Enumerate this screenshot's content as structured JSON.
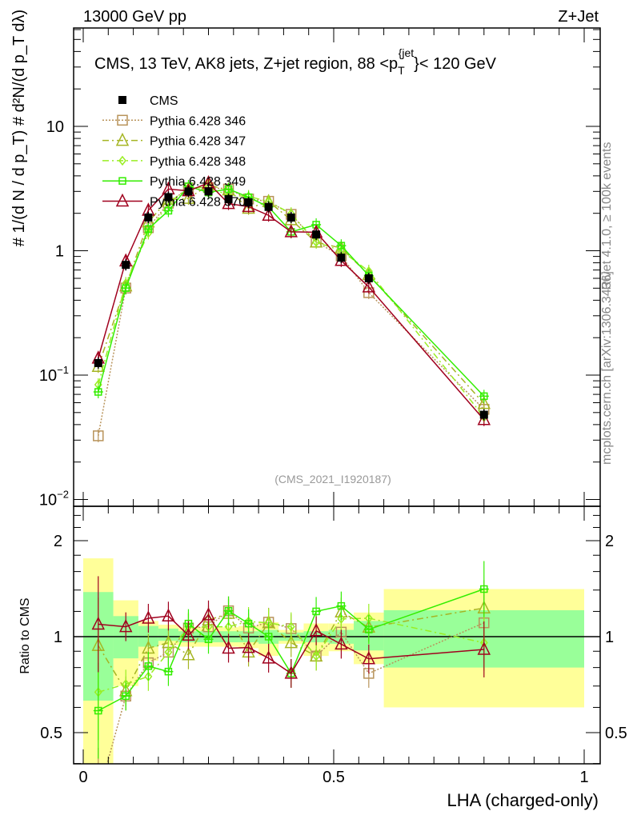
{
  "header": {
    "left": "13000 GeV pp",
    "right": "Z+Jet"
  },
  "side_labels": {
    "rivet": "Rivet 4.1.0, ≥ 100k events",
    "mcplots": "mcplots.cern.ch [arXiv:1306.3436]"
  },
  "analysis_id": "(CMS_2021_I1920187)",
  "colors": {
    "CMS": "#000000",
    "346": "#b8935a",
    "347": "#a5b523",
    "348": "#99ee22",
    "349": "#33ee00",
    "370": "#a0001e",
    "band_total": "#ffff99",
    "band_stat": "#99ff99"
  },
  "chart_data": [
    {
      "type": "line",
      "title": "CMS, 13 TeV, AK8 jets, Z+jet region, 88 <p_T^{jet}< 120 GeV",
      "title_main": "CMS, 13 TeV, AK8 jets, Z+jet region, 88 <p",
      "title_sub": "T",
      "title_sup": "{jet",
      "title_end": "}< 120 GeV",
      "ylabel": "# 1/(d N / d p_T) # d²N/(d p_T dλ)",
      "yscale": "log",
      "ylim": [
        0.009,
        62
      ],
      "xlim": [
        -0.019,
        1.032
      ],
      "yticks": [
        {
          "v": 0.01,
          "base": "10",
          "exp": "−2"
        },
        {
          "v": 0.1,
          "base": "10",
          "exp": "−1"
        },
        {
          "v": 1,
          "base": "1",
          "exp": ""
        },
        {
          "v": 10,
          "base": "10",
          "exp": ""
        }
      ],
      "x": [
        0.03,
        0.085,
        0.13,
        0.17,
        0.21,
        0.25,
        0.29,
        0.33,
        0.37,
        0.415,
        0.465,
        0.515,
        0.57,
        0.8
      ],
      "bin_edges": [
        0,
        0.06,
        0.11,
        0.15,
        0.19,
        0.23,
        0.27,
        0.31,
        0.35,
        0.39,
        0.44,
        0.49,
        0.54,
        0.6,
        1.0
      ],
      "legend_position": "top-left",
      "cms": [
        0.125,
        0.77,
        1.85,
        2.7,
        3.0,
        3.0,
        2.6,
        2.45,
        2.25,
        1.85,
        1.35,
        0.88,
        0.6,
        0.048
      ],
      "series": [
        {
          "name": "CMS",
          "key": "CMS"
        },
        {
          "name": "Pythia 6.428 346",
          "key": "346",
          "ratio": [
            0.26,
            0.651,
            0.828,
            0.894,
            1.064,
            1.074,
            1.205,
            1.064,
            1.11,
            1.06,
            0.869,
            1.033,
            0.767,
            1.105
          ]
        },
        {
          "name": "Pythia 6.428 347",
          "key": "347",
          "ratio": [
            0.938,
            0.676,
            0.92,
            0.957,
            0.877,
            1.127,
            1.182,
            0.894,
            1.105,
            0.957,
            0.869,
            1.194,
            1.07,
            1.229
          ]
        },
        {
          "name": "Pythia 6.428 348",
          "key": "348",
          "ratio": [
            0.67,
            0.71,
            0.75,
            0.894,
            1.074,
            1.074,
            1.074,
            1.116,
            1.105,
            1.074,
            0.869,
            1.137,
            1.142,
            0.957
          ]
        },
        {
          "name": "Pythia 6.428 349",
          "key": "349",
          "ratio": [
            0.586,
            0.651,
            0.808,
            0.777,
            1.099,
            0.981,
            1.205,
            1.099,
            1.0,
            0.767,
            1.2,
            1.248,
            1.053,
            1.41
          ]
        },
        {
          "name": "Pythia 6.428 370",
          "key": "370",
          "ratio": [
            1.094,
            1.074,
            1.142,
            1.16,
            1.01,
            1.17,
            0.92,
            0.924,
            0.856,
            0.767,
            1.043,
            0.947,
            0.852,
            0.912
          ]
        }
      ]
    },
    {
      "type": "line",
      "ylabel": "Ratio to CMS",
      "xlabel": "LHA (charged-only)",
      "yscale": "log",
      "ylim": [
        0.4,
        2.5
      ],
      "yticks": [
        {
          "v": 0.5,
          "label": "0.5"
        },
        {
          "v": 1,
          "label": "1"
        },
        {
          "v": 2,
          "label": "2"
        }
      ],
      "xticks": [
        {
          "v": 0,
          "label": "0"
        },
        {
          "v": 0.5,
          "label": "0.5"
        },
        {
          "v": 1,
          "label": "1"
        }
      ],
      "band_total": [
        [
          0.4,
          1.76
        ],
        [
          0.7,
          1.3
        ],
        [
          0.84,
          1.12
        ],
        [
          0.94,
          1.09
        ],
        [
          0.93,
          1.07
        ],
        [
          0.93,
          1.07
        ],
        [
          0.93,
          1.07
        ],
        [
          0.92,
          1.08
        ],
        [
          0.87,
          1.11
        ],
        [
          0.95,
          1.05
        ],
        [
          0.87,
          1.1
        ],
        [
          0.9,
          1.1
        ],
        [
          0.82,
          1.19
        ],
        [
          0.6,
          1.41
        ]
      ],
      "band_stat": [
        [
          0.63,
          1.38
        ],
        [
          0.855,
          1.16
        ],
        [
          0.93,
          1.08
        ],
        [
          0.97,
          1.06
        ],
        [
          0.96,
          1.04
        ],
        [
          0.96,
          1.04
        ],
        [
          0.96,
          1.04
        ],
        [
          0.96,
          1.04
        ],
        [
          0.95,
          1.05
        ],
        [
          0.97,
          1.03
        ],
        [
          0.96,
          1.04
        ],
        [
          0.95,
          1.05
        ],
        [
          0.905,
          1.12
        ],
        [
          0.8,
          1.21
        ]
      ]
    }
  ]
}
